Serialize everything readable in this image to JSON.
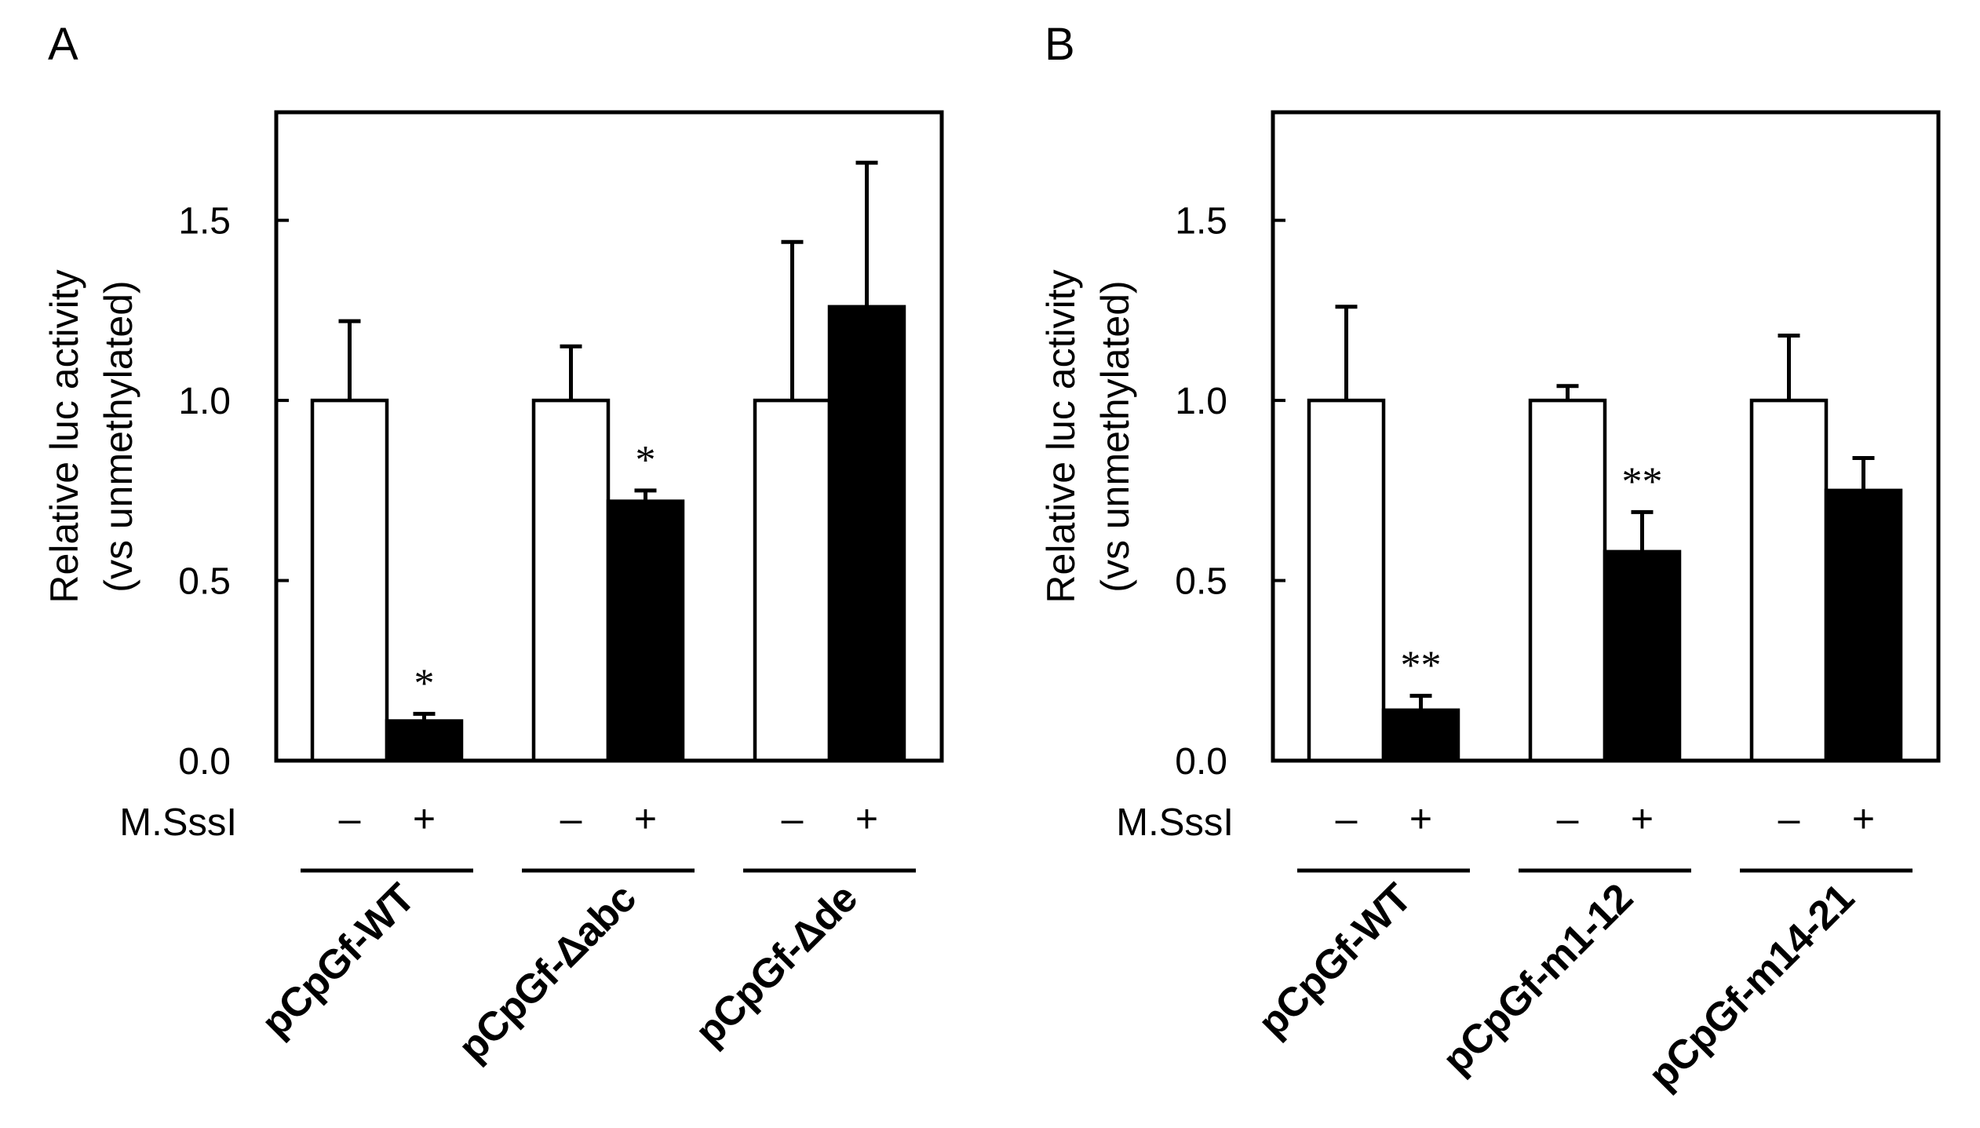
{
  "chart_data": [
    {
      "panel_label": "A",
      "type": "bar",
      "ylabel": [
        "Relative luc activity",
        "(vs unmethylated)"
      ],
      "ylim": [
        0,
        1.8
      ],
      "yticks": [
        0.0,
        0.5,
        1.0,
        1.5
      ],
      "ytick_labels": [
        "0.0",
        "0.5",
        "1.0",
        "1.5"
      ],
      "treatment_label": "M.SssI",
      "series": [
        {
          "name": "–",
          "color": "#ffffff"
        },
        {
          "name": "+",
          "color": "#000000"
        }
      ],
      "categories": [
        "pCpGf-WT",
        "pCpGf-Δabc",
        "pCpGf-Δde"
      ],
      "values": [
        [
          1.0,
          0.11
        ],
        [
          1.0,
          0.72
        ],
        [
          1.0,
          1.26
        ]
      ],
      "error_upper": [
        [
          0.22,
          0.02
        ],
        [
          0.15,
          0.03
        ],
        [
          0.44,
          0.4
        ]
      ],
      "significance": [
        [
          "",
          "*"
        ],
        [
          "",
          "*"
        ],
        [
          "",
          ""
        ]
      ]
    },
    {
      "panel_label": "B",
      "type": "bar",
      "ylabel": [
        "Relative luc activity",
        "(vs unmethylated)"
      ],
      "ylim": [
        0,
        1.8
      ],
      "yticks": [
        0.0,
        0.5,
        1.0,
        1.5
      ],
      "ytick_labels": [
        "0.0",
        "0.5",
        "1.0",
        "1.5"
      ],
      "treatment_label": "M.SssI",
      "series": [
        {
          "name": "–",
          "color": "#ffffff"
        },
        {
          "name": "+",
          "color": "#000000"
        }
      ],
      "categories": [
        "pCpGf-WT",
        "pCpGf-m1-12",
        "pCpGf-m14-21"
      ],
      "values": [
        [
          1.0,
          0.14
        ],
        [
          1.0,
          0.58
        ],
        [
          1.0,
          0.75
        ]
      ],
      "error_upper": [
        [
          0.26,
          0.04
        ],
        [
          0.04,
          0.11
        ],
        [
          0.18,
          0.09
        ]
      ],
      "significance": [
        [
          "",
          "**"
        ],
        [
          "",
          "**"
        ],
        [
          "",
          ""
        ]
      ]
    }
  ]
}
